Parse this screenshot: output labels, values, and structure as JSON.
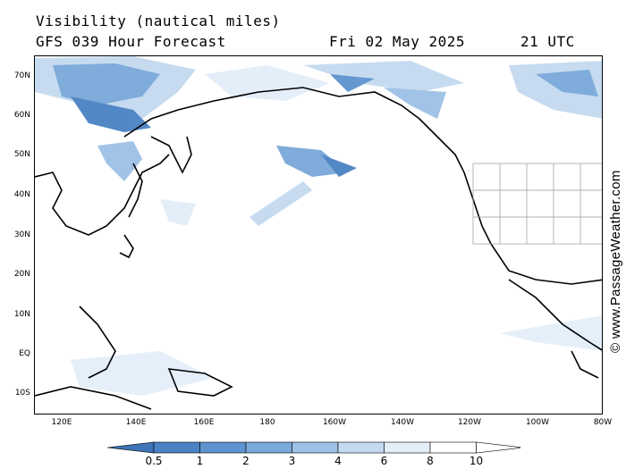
{
  "title": "Visibility (nautical miles)",
  "subtitle": "GFS 039 Hour Forecast",
  "date": "Fri 02 May 2025",
  "time": "21 UTC",
  "credit": "© www.PassageWeather.com",
  "lat_labels": [
    "70N",
    "60N",
    "50N",
    "40N",
    "30N",
    "20N",
    "10N",
    "EQ",
    "10S"
  ],
  "lon_labels": [
    "120E",
    "140E",
    "160E",
    "180",
    "160W",
    "140W",
    "120W",
    "100W",
    "80W"
  ],
  "legend": {
    "labels": [
      "0.5",
      "1",
      "2",
      "3",
      "4",
      "6",
      "8",
      "10"
    ],
    "colors": [
      "#3f74b8",
      "#4a82c4",
      "#5d93cf",
      "#79a8da",
      "#9cc0e6",
      "#c4daf0",
      "#e3eef9",
      "#ffffff"
    ]
  },
  "colors": {
    "land": "#ffffff",
    "ocean": "#ffffff",
    "coast": "#000000",
    "borders": "#999999"
  }
}
